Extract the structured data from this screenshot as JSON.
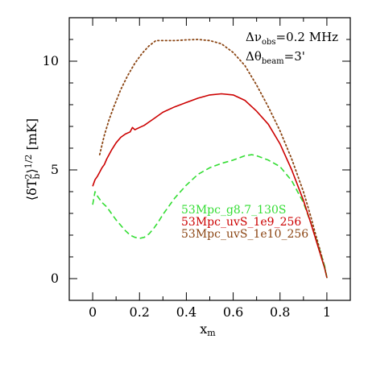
{
  "chart_data": {
    "type": "line",
    "title": "",
    "xlabel": "x_m",
    "ylabel": "⟨δT_b^2⟩^1/2 [mK]",
    "xlim": [
      -0.1,
      1.1
    ],
    "ylim": [
      -1,
      12
    ],
    "xticks": [
      0,
      0.2,
      0.4,
      0.6,
      0.8,
      1
    ],
    "xtick_labels": [
      "0",
      "0.2",
      "0.4",
      "0.6",
      "0.8",
      "1"
    ],
    "yticks": [
      0,
      5,
      10
    ],
    "ytick_labels": [
      "0",
      "5",
      "10"
    ],
    "grid": false,
    "legend_position": "lower-right-inside",
    "annotations": {
      "line1_prefix": "Δν",
      "line1_sub": "obs",
      "line1_value": "=0.2  MHz",
      "line2_prefix": "Δθ",
      "line2_sub": "beam",
      "line2_value": "=3'"
    },
    "series": [
      {
        "name": "53Mpc_g8.7_130S",
        "color": "#33dd33",
        "style": "dashed",
        "x": [
          0.0,
          0.01,
          0.02,
          0.04,
          0.06,
          0.08,
          0.1,
          0.12,
          0.14,
          0.16,
          0.18,
          0.2,
          0.22,
          0.24,
          0.26,
          0.28,
          0.3,
          0.35,
          0.4,
          0.45,
          0.5,
          0.55,
          0.6,
          0.65,
          0.68,
          0.7,
          0.75,
          0.8,
          0.85,
          0.9,
          0.93,
          0.95,
          0.97,
          0.98,
          0.99,
          1.0
        ],
        "y": [
          3.4,
          4.0,
          3.8,
          3.5,
          3.3,
          3.0,
          2.7,
          2.45,
          2.2,
          2.0,
          1.9,
          1.85,
          1.9,
          2.05,
          2.3,
          2.6,
          2.95,
          3.7,
          4.3,
          4.8,
          5.1,
          5.3,
          5.45,
          5.65,
          5.7,
          5.65,
          5.45,
          5.15,
          4.5,
          3.5,
          2.6,
          1.95,
          1.3,
          0.95,
          0.6,
          0.05
        ]
      },
      {
        "name": "53Mpc_uvS_1e9_256",
        "color": "#cc0000",
        "style": "solid",
        "x": [
          0.0,
          0.01,
          0.02,
          0.03,
          0.04,
          0.05,
          0.06,
          0.08,
          0.1,
          0.12,
          0.14,
          0.16,
          0.17,
          0.18,
          0.2,
          0.22,
          0.24,
          0.26,
          0.28,
          0.3,
          0.35,
          0.4,
          0.45,
          0.5,
          0.55,
          0.6,
          0.65,
          0.7,
          0.75,
          0.8,
          0.85,
          0.9,
          0.93,
          0.95,
          0.97,
          0.98,
          0.99,
          1.0
        ],
        "y": [
          4.25,
          4.55,
          4.7,
          4.9,
          5.1,
          5.25,
          5.5,
          5.9,
          6.25,
          6.5,
          6.65,
          6.75,
          6.95,
          6.85,
          6.95,
          7.05,
          7.2,
          7.35,
          7.5,
          7.65,
          7.9,
          8.1,
          8.3,
          8.45,
          8.5,
          8.45,
          8.2,
          7.7,
          7.1,
          6.2,
          5.0,
          3.6,
          2.6,
          1.9,
          1.2,
          0.85,
          0.5,
          0.05
        ]
      },
      {
        "name": "53Mpc_uvS_1e10_256",
        "color": "#8b4513",
        "style": "dotted",
        "x": [
          0.03,
          0.05,
          0.07,
          0.09,
          0.12,
          0.15,
          0.18,
          0.21,
          0.24,
          0.27,
          0.3,
          0.35,
          0.4,
          0.45,
          0.5,
          0.55,
          0.6,
          0.65,
          0.7,
          0.75,
          0.8,
          0.85,
          0.9,
          0.93,
          0.95,
          0.97,
          0.98,
          0.99,
          1.0
        ],
        "y": [
          5.7,
          6.6,
          7.3,
          7.9,
          8.7,
          9.35,
          9.9,
          10.35,
          10.7,
          10.95,
          10.95,
          10.95,
          10.98,
          11.0,
          10.95,
          10.8,
          10.4,
          9.8,
          8.9,
          7.9,
          6.8,
          5.5,
          4.0,
          2.9,
          2.1,
          1.35,
          0.95,
          0.55,
          0.05
        ]
      }
    ]
  }
}
